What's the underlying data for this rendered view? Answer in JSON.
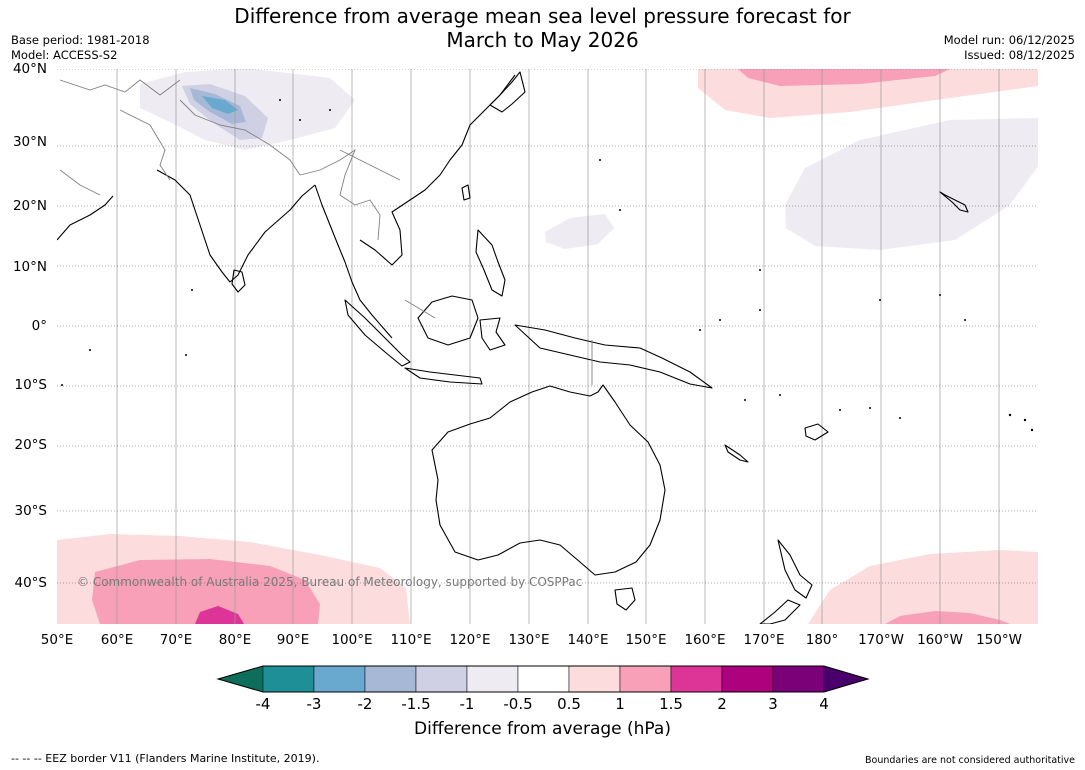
{
  "header": {
    "title_line1": "Difference from average mean sea level pressure forecast for",
    "title_line2": "March to May 2026",
    "base_period": "Base period: 1981-2018",
    "model": "Model: ACCESS-S2",
    "model_run": "Model run: 06/12/2025",
    "issued": "Issued: 08/12/2025"
  },
  "map": {
    "lat_labels": [
      "40°N",
      "30°N",
      "20°N",
      "10°N",
      "0°",
      "10°S",
      "20°S",
      "30°S",
      "40°S"
    ],
    "lon_labels": [
      "50°E",
      "60°E",
      "70°E",
      "80°E",
      "90°E",
      "100°E",
      "110°E",
      "120°E",
      "130°E",
      "140°E",
      "150°E",
      "160°E",
      "170°E",
      "180°",
      "170°W",
      "160°W",
      "150°W"
    ],
    "copyright": "© Commonwealth of Australia 2025, Bureau of Meteorology, supported by COSPPac"
  },
  "colorbar": {
    "title": "Difference from average (hPa)",
    "tick_labels": [
      "-4",
      "-3",
      "-2",
      "-1.5",
      "-1",
      "-0.5",
      "0.5",
      "1",
      "1.5",
      "2",
      "3",
      "4"
    ],
    "colors": {
      "under": "#0d6e5c",
      "bins": [
        "#1e8f96",
        "#6aa9cf",
        "#a6b8d6",
        "#cfd0e4",
        "#efebf2",
        "#ffffff",
        "#fcdcdc",
        "#f8a0b8",
        "#dd3497",
        "#ae017e",
        "#7a0177"
      ],
      "over": "#49006a"
    }
  },
  "footer": {
    "eez_note": "--  --  -- EEZ border V11 (Flanders Marine Institute, 2019).",
    "boundaries_note": "Boundaries are not considered authoritative"
  }
}
